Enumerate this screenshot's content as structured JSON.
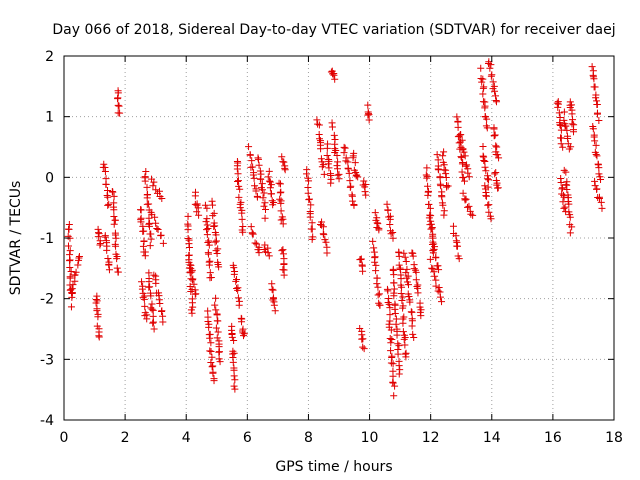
{
  "chart_data": {
    "type": "scatter",
    "title": "Day 066 of 2018, Sidereal Day-to-day VTEC variation (SDTVAR) for receiver daej",
    "xlabel": "GPS time / hours",
    "ylabel": "SDTVAR / TECUs",
    "xlim": [
      0,
      18
    ],
    "ylim": [
      -4,
      2
    ],
    "xticks": [
      "0",
      "2",
      "4",
      "6",
      "8",
      "10",
      "12",
      "14",
      "16",
      "18"
    ],
    "yticks": [
      "-4",
      "-3",
      "-2",
      "-1",
      "0",
      "1",
      "2"
    ],
    "xtick_values": [
      0,
      2,
      4,
      6,
      8,
      10,
      12,
      14,
      16,
      18
    ],
    "ytick_values": [
      -4,
      -3,
      -2,
      -1,
      0,
      1,
      2
    ],
    "grid": true,
    "marker": "plus",
    "color": "#e00000",
    "series": [
      {
        "name": "SDTVAR",
        "segments": [
          {
            "x": [
              0.15,
              0.25
            ],
            "y": [
              -0.75,
              -2.1
            ]
          },
          {
            "x": [
              0.25,
              0.5
            ],
            "y": [
              -1.95,
              -1.25
            ]
          },
          {
            "x": [
              1.05,
              1.15
            ],
            "y": [
              -1.9,
              -2.65
            ]
          },
          {
            "x": [
              1.1,
              1.2
            ],
            "y": [
              -0.85,
              -1.1
            ]
          },
          {
            "x": [
              1.3,
              1.45
            ],
            "y": [
              0.25,
              -0.45
            ]
          },
          {
            "x": [
              1.35,
              1.5
            ],
            "y": [
              -0.95,
              -1.55
            ]
          },
          {
            "x": [
              1.6,
              1.75
            ],
            "y": [
              -0.2,
              -1.6
            ]
          },
          {
            "x": [
              1.75,
              1.8
            ],
            "y": [
              1.42,
              1.05
            ]
          },
          {
            "x": [
              2.5,
              2.65
            ],
            "y": [
              -0.5,
              -1.3
            ]
          },
          {
            "x": [
              2.55,
              2.7
            ],
            "y": [
              -1.7,
              -2.35
            ]
          },
          {
            "x": [
              2.65,
              2.85
            ],
            "y": [
              0.1,
              -1.1
            ]
          },
          {
            "x": [
              2.75,
              2.95
            ],
            "y": [
              -1.6,
              -2.5
            ]
          },
          {
            "x": [
              2.85,
              3.2
            ],
            "y": [
              -0.05,
              -0.35
            ]
          },
          {
            "x": [
              2.85,
              3.25
            ],
            "y": [
              -0.6,
              -1.05
            ]
          },
          {
            "x": [
              2.95,
              3.25
            ],
            "y": [
              -1.6,
              -2.35
            ]
          },
          {
            "x": [
              4.05,
              4.2
            ],
            "y": [
              -0.7,
              -2.25
            ]
          },
          {
            "x": [
              4.1,
              4.3
            ],
            "y": [
              -1.3,
              -1.95
            ]
          },
          {
            "x": [
              4.3,
              4.4
            ],
            "y": [
              -0.3,
              -0.6
            ]
          },
          {
            "x": [
              4.65,
              4.8
            ],
            "y": [
              -0.5,
              -1.7
            ]
          },
          {
            "x": [
              4.7,
              4.9
            ],
            "y": [
              -2.2,
              -3.4
            ]
          },
          {
            "x": [
              4.85,
              5.05
            ],
            "y": [
              -0.45,
              -1.5
            ]
          },
          {
            "x": [
              4.95,
              5.1
            ],
            "y": [
              -2.0,
              -3.05
            ]
          },
          {
            "x": [
              5.5,
              5.6
            ],
            "y": [
              -2.4,
              -3.5
            ]
          },
          {
            "x": [
              5.55,
              5.75
            ],
            "y": [
              -1.45,
              -2.1
            ]
          },
          {
            "x": [
              5.65,
              5.85
            ],
            "y": [
              0.3,
              -0.9
            ]
          },
          {
            "x": [
              5.8,
              5.9
            ],
            "y": [
              -2.3,
              -2.65
            ]
          },
          {
            "x": [
              6.05,
              6.35
            ],
            "y": [
              0.45,
              -0.35
            ]
          },
          {
            "x": [
              6.1,
              6.4
            ],
            "y": [
              -0.8,
              -1.25
            ]
          },
          {
            "x": [
              6.35,
              6.6
            ],
            "y": [
              0.35,
              -0.65
            ]
          },
          {
            "x": [
              6.55,
              6.7
            ],
            "y": [
              -1.1,
              -1.3
            ]
          },
          {
            "x": [
              6.7,
              6.85
            ],
            "y": [
              0.1,
              -0.5
            ]
          },
          {
            "x": [
              6.8,
              6.9
            ],
            "y": [
              -1.8,
              -2.2
            ]
          },
          {
            "x": [
              7.05,
              7.15
            ],
            "y": [
              -0.1,
              -0.8
            ]
          },
          {
            "x": [
              7.15,
              7.2
            ],
            "y": [
              -1.2,
              -1.6
            ]
          },
          {
            "x": [
              7.15,
              7.25
            ],
            "y": [
              0.3,
              0.1
            ]
          },
          {
            "x": [
              7.95,
              8.15
            ],
            "y": [
              0.1,
              -1.0
            ]
          },
          {
            "x": [
              8.3,
              8.5
            ],
            "y": [
              0.95,
              0.1
            ]
          },
          {
            "x": [
              8.4,
              8.6
            ],
            "y": [
              -0.7,
              -1.2
            ]
          },
          {
            "x": [
              8.6,
              8.75
            ],
            "y": [
              0.5,
              -0.1
            ]
          },
          {
            "x": [
              8.75,
              8.85
            ],
            "y": [
              1.75,
              1.65
            ]
          },
          {
            "x": [
              8.8,
              9.0
            ],
            "y": [
              0.85,
              -0.05
            ]
          },
          {
            "x": [
              9.15,
              9.5
            ],
            "y": [
              0.55,
              -0.5
            ]
          },
          {
            "x": [
              9.45,
              9.6
            ],
            "y": [
              0.4,
              -0.05
            ]
          },
          {
            "x": [
              9.7,
              9.8
            ],
            "y": [
              -1.3,
              -1.5
            ]
          },
          {
            "x": [
              9.7,
              9.8
            ],
            "y": [
              -2.5,
              -2.8
            ]
          },
          {
            "x": [
              9.8,
              9.9
            ],
            "y": [
              -0.05,
              -0.25
            ]
          },
          {
            "x": [
              9.95,
              10.0
            ],
            "y": [
              1.15,
              0.95
            ]
          },
          {
            "x": [
              10.1,
              10.35
            ],
            "y": [
              -1.1,
              -2.15
            ]
          },
          {
            "x": [
              10.2,
              10.3
            ],
            "y": [
              -0.6,
              -0.9
            ]
          },
          {
            "x": [
              10.6,
              10.75
            ],
            "y": [
              -0.45,
              -1.0
            ]
          },
          {
            "x": [
              10.6,
              10.8
            ],
            "y": [
              -1.8,
              -3.55
            ]
          },
          {
            "x": [
              10.75,
              11.0
            ],
            "y": [
              -1.5,
              -3.2
            ]
          },
          {
            "x": [
              10.95,
              11.2
            ],
            "y": [
              -1.2,
              -3.0
            ]
          },
          {
            "x": [
              11.15,
              11.45
            ],
            "y": [
              -1.25,
              -2.6
            ]
          },
          {
            "x": [
              11.4,
              11.7
            ],
            "y": [
              -1.2,
              -2.3
            ]
          },
          {
            "x": [
              11.85,
              12.1
            ],
            "y": [
              0.15,
              -1.3
            ]
          },
          {
            "x": [
              11.95,
              12.25
            ],
            "y": [
              -0.7,
              -1.55
            ]
          },
          {
            "x": [
              12.0,
              12.35
            ],
            "y": [
              -1.4,
              -2.05
            ]
          },
          {
            "x": [
              12.2,
              12.45
            ],
            "y": [
              0.35,
              -0.6
            ]
          },
          {
            "x": [
              12.4,
              12.55
            ],
            "y": [
              0.4,
              -0.2
            ]
          },
          {
            "x": [
              12.75,
              12.95
            ],
            "y": [
              -0.85,
              -1.3
            ]
          },
          {
            "x": [
              12.85,
              13.1
            ],
            "y": [
              1.0,
              -0.1
            ]
          },
          {
            "x": [
              12.95,
              13.25
            ],
            "y": [
              0.75,
              0.0
            ]
          },
          {
            "x": [
              13.05,
              13.35
            ],
            "y": [
              -0.25,
              -0.65
            ]
          },
          {
            "x": [
              13.65,
              13.85
            ],
            "y": [
              1.75,
              0.8
            ]
          },
          {
            "x": [
              13.7,
              13.9
            ],
            "y": [
              0.45,
              -0.15
            ]
          },
          {
            "x": [
              13.75,
              13.95
            ],
            "y": [
              -0.15,
              -0.65
            ]
          },
          {
            "x": [
              13.9,
              14.15
            ],
            "y": [
              1.95,
              1.2
            ]
          },
          {
            "x": [
              14.05,
              14.2
            ],
            "y": [
              0.85,
              0.3
            ]
          },
          {
            "x": [
              14.1,
              14.2
            ],
            "y": [
              0.05,
              -0.2
            ]
          },
          {
            "x": [
              16.15,
              16.3
            ],
            "y": [
              1.3,
              0.5
            ]
          },
          {
            "x": [
              16.25,
              16.4
            ],
            "y": [
              -0.05,
              -0.6
            ]
          },
          {
            "x": [
              16.35,
              16.55
            ],
            "y": [
              1.05,
              0.45
            ]
          },
          {
            "x": [
              16.4,
              16.6
            ],
            "y": [
              0.1,
              -0.9
            ]
          },
          {
            "x": [
              16.55,
              16.7
            ],
            "y": [
              1.3,
              0.75
            ]
          },
          {
            "x": [
              17.3,
              17.5
            ],
            "y": [
              1.85,
              0.95
            ]
          },
          {
            "x": [
              17.3,
              17.55
            ],
            "y": [
              0.85,
              -0.05
            ]
          },
          {
            "x": [
              17.35,
              17.6
            ],
            "y": [
              -0.05,
              -0.5
            ]
          }
        ]
      }
    ]
  }
}
